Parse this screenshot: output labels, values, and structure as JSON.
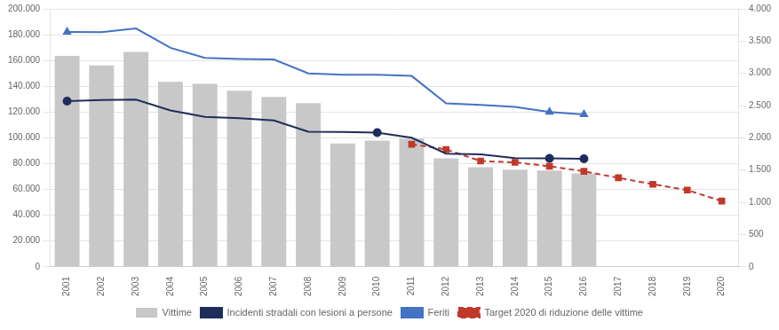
{
  "chart_data": {
    "type": "bar",
    "categories": [
      "2001",
      "2002",
      "2003",
      "2004",
      "2005",
      "2006",
      "2007",
      "2008",
      "2009",
      "2010",
      "2011",
      "2012",
      "2013",
      "2014",
      "2015",
      "2016",
      "2017",
      "2018",
      "2019",
      "2020"
    ],
    "series": [
      {
        "name": "Vittime",
        "type": "bar",
        "color": "#c8c8c8",
        "values": [
          163600,
          156100,
          166700,
          143400,
          141800,
          136600,
          131700,
          127000,
          95700,
          97900,
          99400,
          84100,
          77200,
          75400,
          74600,
          72400,
          null,
          null,
          null,
          null
        ]
      },
      {
        "name": "Incidenti stradali con lesioni a persone",
        "type": "line",
        "color": "#1f2d5c",
        "marker": "circle",
        "marker_at": [
          "2001",
          "2010",
          "2015",
          "2016"
        ],
        "values": [
          128500,
          129300,
          129700,
          121200,
          116200,
          115300,
          113500,
          104700,
          104500,
          104000,
          100100,
          87700,
          87200,
          84200,
          84100,
          83700,
          null,
          null,
          null,
          null
        ]
      },
      {
        "name": "Feriti",
        "type": "line",
        "color": "#4472c4",
        "marker": "triangle",
        "marker_at": [
          "2001",
          "2015",
          "2016"
        ],
        "values": [
          182200,
          181900,
          184800,
          169800,
          162000,
          161200,
          160800,
          150000,
          149000,
          149000,
          148000,
          126800,
          125600,
          124000,
          120000,
          118200,
          null,
          null,
          null,
          null
        ]
      },
      {
        "name": "Target 2020 di riduzione delle vittime",
        "type": "line",
        "color": "#c0392b",
        "marker": "square",
        "line_style": "dashed",
        "axis": "y2",
        "values": [
          null,
          null,
          null,
          null,
          null,
          null,
          null,
          null,
          null,
          null,
          1900,
          1820,
          1640,
          1620,
          1560,
          1480,
          1380,
          1280,
          1190,
          1020
        ]
      }
    ],
    "ylim": [
      0,
      200000
    ],
    "yticks": [
      0,
      {
        "value": 20000,
        "label": "20.000"
      },
      {
        "value": 40000,
        "label": "40.000"
      },
      {
        "value": 60000,
        "label": "60.000"
      },
      {
        "value": 80000,
        "label": "80.000"
      },
      {
        "value": 100000,
        "label": "100.000"
      },
      {
        "value": 120000,
        "label": "120.000"
      },
      {
        "value": 140000,
        "label": "140.000"
      },
      {
        "value": 160000,
        "label": "160.000"
      },
      {
        "value": 180000,
        "label": "180.000"
      },
      {
        "value": 200000,
        "label": "200.000"
      }
    ],
    "y2lim": [
      0,
      4000
    ],
    "y2ticks": [
      0,
      500,
      {
        "value": 1000,
        "label": "1.000"
      },
      {
        "value": 1500,
        "label": "1.500"
      },
      {
        "value": 2000,
        "label": "2.000"
      },
      {
        "value": 2500,
        "label": "2.500"
      },
      {
        "value": 3000,
        "label": "3.000"
      },
      {
        "value": 3500,
        "label": "3.500"
      },
      {
        "value": 4000,
        "label": "4.000"
      }
    ],
    "grid": true,
    "legend": "bottom"
  }
}
